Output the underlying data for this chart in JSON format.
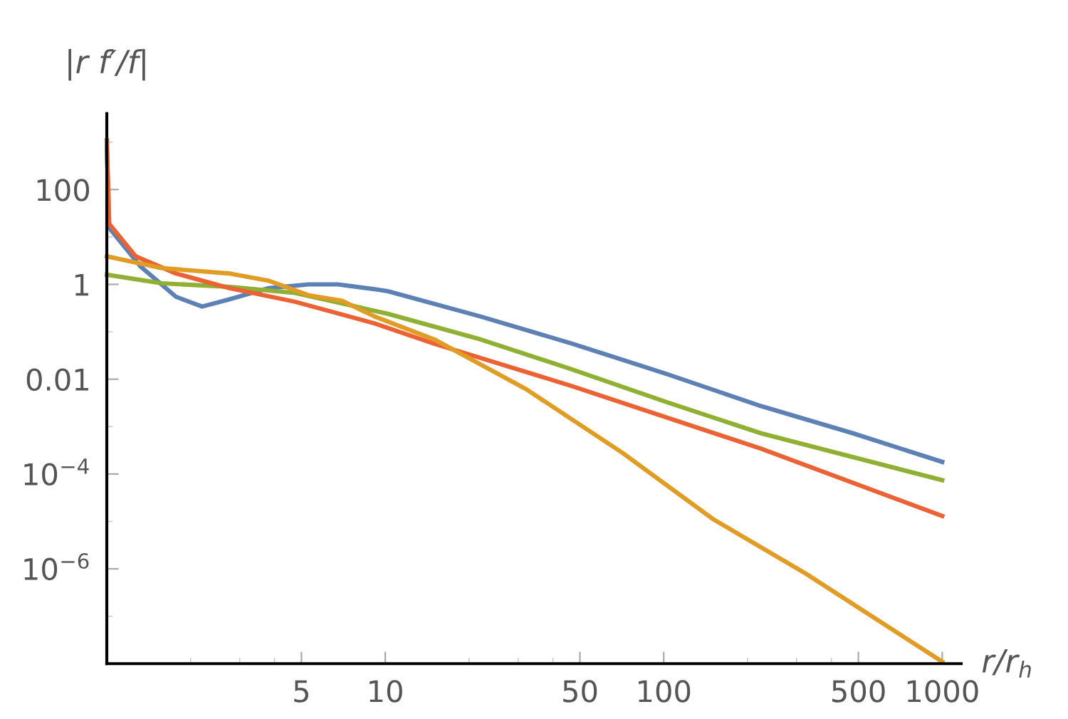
{
  "chart_data": {
    "type": "line",
    "xlabel": "r/r$_{h}$",
    "ylabel": "|r f′/f|",
    "log": "xy",
    "grid": false,
    "legend": false,
    "marker": "none",
    "line_style": "solid",
    "xlim": [
      1,
      1170
    ],
    "ylim": [
      1e-08,
      4000
    ],
    "xticks": [
      5,
      10,
      50,
      100,
      500,
      1000,
      {
        "value": 2,
        "label": null
      },
      {
        "value": 3,
        "label": null
      },
      {
        "value": 4,
        "label": null
      },
      {
        "value": 20,
        "label": null
      },
      {
        "value": 30,
        "label": null
      },
      {
        "value": 40,
        "label": null
      },
      {
        "value": 200,
        "label": null
      },
      {
        "value": 300,
        "label": null
      },
      {
        "value": 400,
        "label": null
      }
    ],
    "yticks": [
      100,
      1,
      0.01,
      {
        "value": 0.0001,
        "label": "10$^{−4}$"
      },
      {
        "value": 1e-06,
        "label": "10$^{−6}$"
      },
      {
        "value": 1000,
        "label": null
      },
      {
        "value": 10,
        "label": null
      },
      {
        "value": 0.1,
        "label": null
      },
      {
        "value": 0.001,
        "label": null
      },
      {
        "value": 1e-05,
        "label": null
      },
      {
        "value": 1e-07,
        "label": null
      }
    ],
    "series": [
      {
        "color": "#5e81b5",
        "x": [
          1,
          1.02,
          1.32,
          1.77,
          2.2,
          2.74,
          3.8,
          5.3,
          6.76,
          9.16,
          10.2,
          22,
          47,
          102,
          224,
          479,
          1000
        ],
        "values": [
          800,
          15.5,
          2.4,
          0.55,
          0.34,
          0.48,
          0.83,
          1,
          1,
          0.79,
          0.72,
          0.21,
          0.056,
          0.013,
          0.0027,
          0.00072,
          0.00018
        ]
      },
      {
        "color": "#8fb032",
        "x": [
          1,
          1.58,
          2.74,
          4.74,
          10.2,
          22,
          47,
          102,
          224,
          1000
        ],
        "values": [
          1.6,
          1.05,
          0.89,
          0.66,
          0.24,
          0.069,
          0.016,
          0.0033,
          0.00072,
          7.4e-05
        ]
      },
      {
        "color": "#eb6235",
        "x": [
          1,
          1.02,
          1.27,
          1.77,
          2.74,
          4.74,
          9.16,
          15,
          47,
          224,
          1000
        ],
        "values": [
          1100,
          19,
          3.9,
          1.7,
          0.84,
          0.43,
          0.15,
          0.056,
          0.0071,
          0.00034,
          1.3e-05
        ]
      },
      {
        "color": "#e19c24",
        "x": [
          1,
          1.58,
          2.74,
          3.8,
          5.3,
          7.0,
          9.16,
          15,
          32,
          71,
          151,
          324,
          1000
        ],
        "values": [
          3.9,
          2.2,
          1.7,
          1.2,
          0.59,
          0.45,
          0.21,
          0.069,
          0.0062,
          0.00028,
          1.1e-05,
          7.9e-07,
          1.1e-08
        ]
      }
    ]
  }
}
